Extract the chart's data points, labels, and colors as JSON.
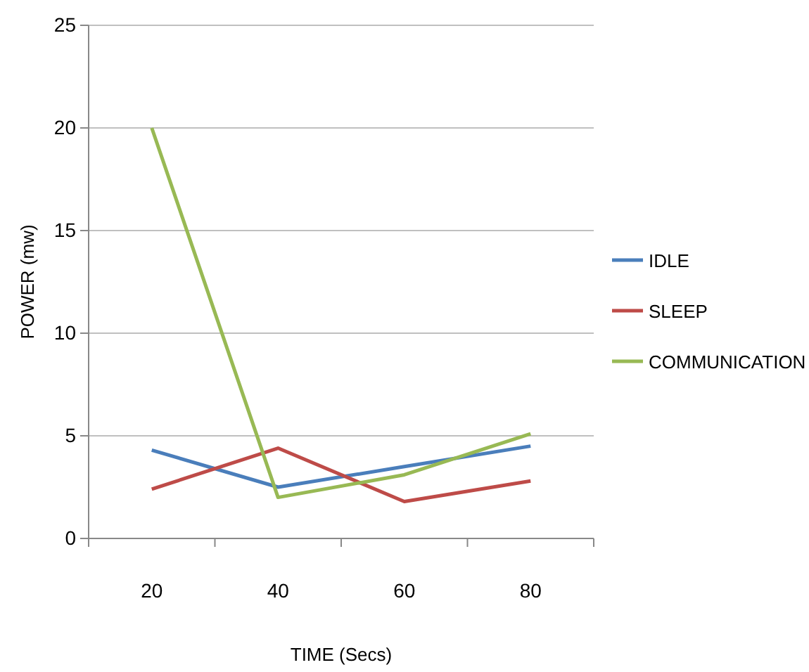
{
  "chart_data": {
    "type": "line",
    "xlabel": "TIME (Secs)",
    "ylabel": "POWER (mw)",
    "categories": [
      "20",
      "40",
      "60",
      "80"
    ],
    "series": [
      {
        "name": "IDLE",
        "color": "#4a7ebb",
        "values": [
          4.3,
          2.5,
          3.5,
          4.5
        ]
      },
      {
        "name": "SLEEP",
        "color": "#be4b48",
        "values": [
          2.4,
          4.4,
          1.8,
          2.8
        ]
      },
      {
        "name": "COMMUNICATION",
        "color": "#98b954",
        "values": [
          20,
          2.0,
          3.1,
          5.1
        ]
      }
    ],
    "ylim": [
      0,
      25
    ],
    "yticks": [
      0,
      5,
      10,
      15,
      20,
      25
    ],
    "grid": "y",
    "legend": "right",
    "marker": "none",
    "line_style": "solid"
  }
}
